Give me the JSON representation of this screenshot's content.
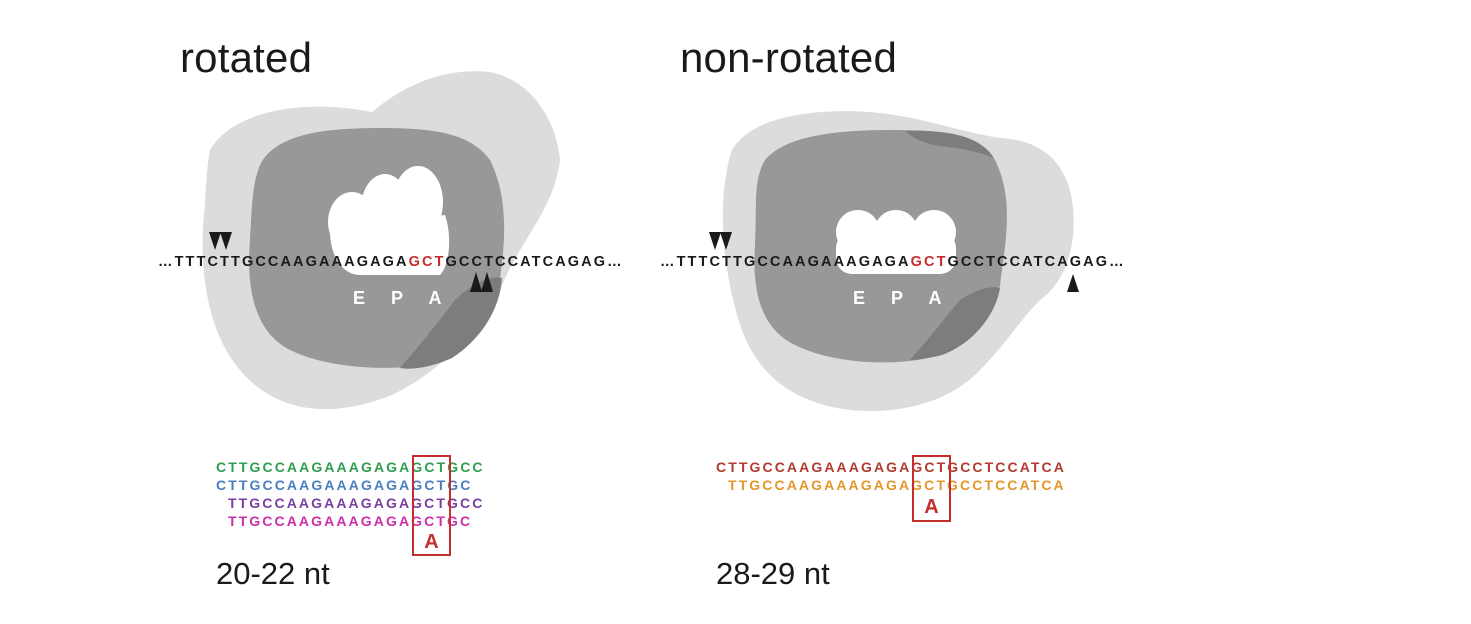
{
  "panels": [
    {
      "title": "rotated",
      "mrna": {
        "prefix": "…TTTCTTGCCAAGAAAGAGA",
        "codon": "GCT",
        "suffix": "GCCTCCATCAGAG…"
      },
      "sites": [
        "E",
        "P",
        "A"
      ],
      "footprints": [
        {
          "text": "CTTGCCAAGAAAGAGAGCTGCC",
          "color": "#2e9e4f"
        },
        {
          "text": "CTTGCCAAGAAAGAGAGCTGC",
          "color": "#4a7fbf"
        },
        {
          "text": "TTGCCAAGAAAGAGAGCTGCC",
          "color": "#7a3fa0"
        },
        {
          "text": "TTGCCAAGAAAGAGAGCTGC",
          "color": "#cc2fa8"
        }
      ],
      "codon_label": "A",
      "length": "20-22 nt"
    },
    {
      "title": "non-rotated",
      "mrna": {
        "prefix": "…TTTCTTGCCAAGAAAGAGA",
        "codon": "GCT",
        "suffix": "GCCTCCATCAGAG…"
      },
      "sites": [
        "E",
        "P",
        "A"
      ],
      "footprints": [
        {
          "text": "CTTGCCAAGAAAGAGAGCTGCCTCCATCA",
          "color": "#b23a2f"
        },
        {
          "text": "TTGCCAAGAAAGAGAGCTGCCTCCATCA",
          "color": "#e2982a"
        }
      ],
      "codon_label": "A",
      "length": "28-29 nt"
    }
  ],
  "colors": {
    "light_subunit": "#dcdcde",
    "dark_subunit": "#98989b",
    "overlap_subunit": "#7d7d80",
    "codon_highlight": "#c62d2d",
    "arrow": "#1a1a1a"
  }
}
